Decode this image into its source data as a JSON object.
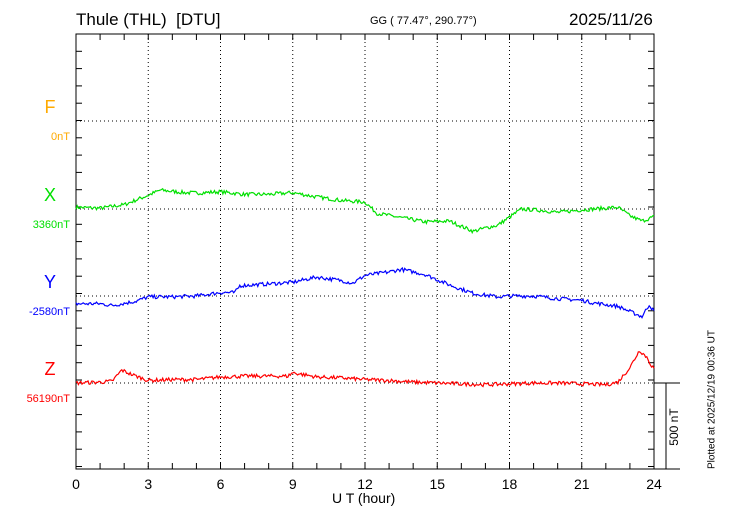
{
  "header": {
    "station": "Thule (THL)  [DTU]",
    "coords": "GG ( 77.47°, 290.77°)",
    "date": "2025/11/26"
  },
  "footer": {
    "plotted": "Plotted at 2025/12/19 00:36 UT"
  },
  "chart_data": {
    "type": "line",
    "xlabel": "U T (hour)",
    "xlim": [
      0,
      24
    ],
    "xticks": [
      "0",
      "3",
      "6",
      "9",
      "12",
      "15",
      "18",
      "21",
      "24"
    ],
    "scale_bar": "500 nT",
    "series": [
      {
        "name": "F",
        "baseline_label": "0nT",
        "color": "#ffaa00",
        "points": []
      },
      {
        "name": "X",
        "baseline_label": "3360nT",
        "color": "#00e000",
        "points": [
          [
            0,
            10
          ],
          [
            1,
            5
          ],
          [
            2,
            25
          ],
          [
            3,
            80
          ],
          [
            3.5,
            110
          ],
          [
            4.5,
            95
          ],
          [
            5,
            93
          ],
          [
            6,
            100
          ],
          [
            7,
            85
          ],
          [
            8,
            85
          ],
          [
            9,
            95
          ],
          [
            10,
            70
          ],
          [
            11,
            50
          ],
          [
            12,
            40
          ],
          [
            12.5,
            -25
          ],
          [
            13.5,
            -50
          ],
          [
            14.5,
            -75
          ],
          [
            15.5,
            -70
          ],
          [
            16.5,
            -130
          ],
          [
            17,
            -110
          ],
          [
            17.5,
            -95
          ],
          [
            18.5,
            0
          ],
          [
            19.5,
            -10
          ],
          [
            20,
            -20
          ],
          [
            21,
            -5
          ],
          [
            22,
            5
          ],
          [
            22.5,
            10
          ],
          [
            23,
            -40
          ],
          [
            23.5,
            -70
          ],
          [
            24,
            -45
          ]
        ]
      },
      {
        "name": "Y",
        "baseline_label": "-2580nT",
        "color": "#0000ff",
        "points": [
          [
            0,
            -45
          ],
          [
            1,
            -45
          ],
          [
            1.5,
            -55
          ],
          [
            2.5,
            -30
          ],
          [
            3,
            -5
          ],
          [
            4,
            -5
          ],
          [
            5,
            0
          ],
          [
            6,
            20
          ],
          [
            6.6,
            20
          ],
          [
            6.8,
            60
          ],
          [
            8,
            70
          ],
          [
            9,
            80
          ],
          [
            10,
            110
          ],
          [
            11,
            90
          ],
          [
            11.5,
            75
          ],
          [
            12,
            120
          ],
          [
            13,
            140
          ],
          [
            13.5,
            155
          ],
          [
            14.5,
            125
          ],
          [
            15.5,
            65
          ],
          [
            16.5,
            15
          ],
          [
            17.5,
            -5
          ],
          [
            18,
            0
          ],
          [
            19,
            0
          ],
          [
            20,
            -15
          ],
          [
            21,
            -25
          ],
          [
            21.5,
            -40
          ],
          [
            22.5,
            -60
          ],
          [
            23,
            -90
          ],
          [
            23.5,
            -120
          ],
          [
            23.8,
            -50
          ],
          [
            24,
            -90
          ]
        ]
      },
      {
        "name": "Z",
        "baseline_label": "56190nT",
        "color": "#ff0000",
        "points": [
          [
            0,
            0
          ],
          [
            1,
            5
          ],
          [
            1.5,
            10
          ],
          [
            1.9,
            75
          ],
          [
            2.3,
            50
          ],
          [
            3,
            15
          ],
          [
            4,
            20
          ],
          [
            5,
            20
          ],
          [
            6,
            35
          ],
          [
            7,
            40
          ],
          [
            8,
            40
          ],
          [
            8.8,
            40
          ],
          [
            9,
            60
          ],
          [
            10,
            35
          ],
          [
            11,
            30
          ],
          [
            12,
            20
          ],
          [
            13,
            15
          ],
          [
            14,
            5
          ],
          [
            15,
            0
          ],
          [
            16,
            -5
          ],
          [
            17,
            -10
          ],
          [
            18,
            -5
          ],
          [
            19,
            0
          ],
          [
            20,
            0
          ],
          [
            21,
            -5
          ],
          [
            22,
            -10
          ],
          [
            22.5,
            5
          ],
          [
            23,
            90
          ],
          [
            23.4,
            190
          ],
          [
            23.7,
            150
          ],
          [
            23.9,
            100
          ],
          [
            24,
            85
          ]
        ]
      }
    ]
  }
}
